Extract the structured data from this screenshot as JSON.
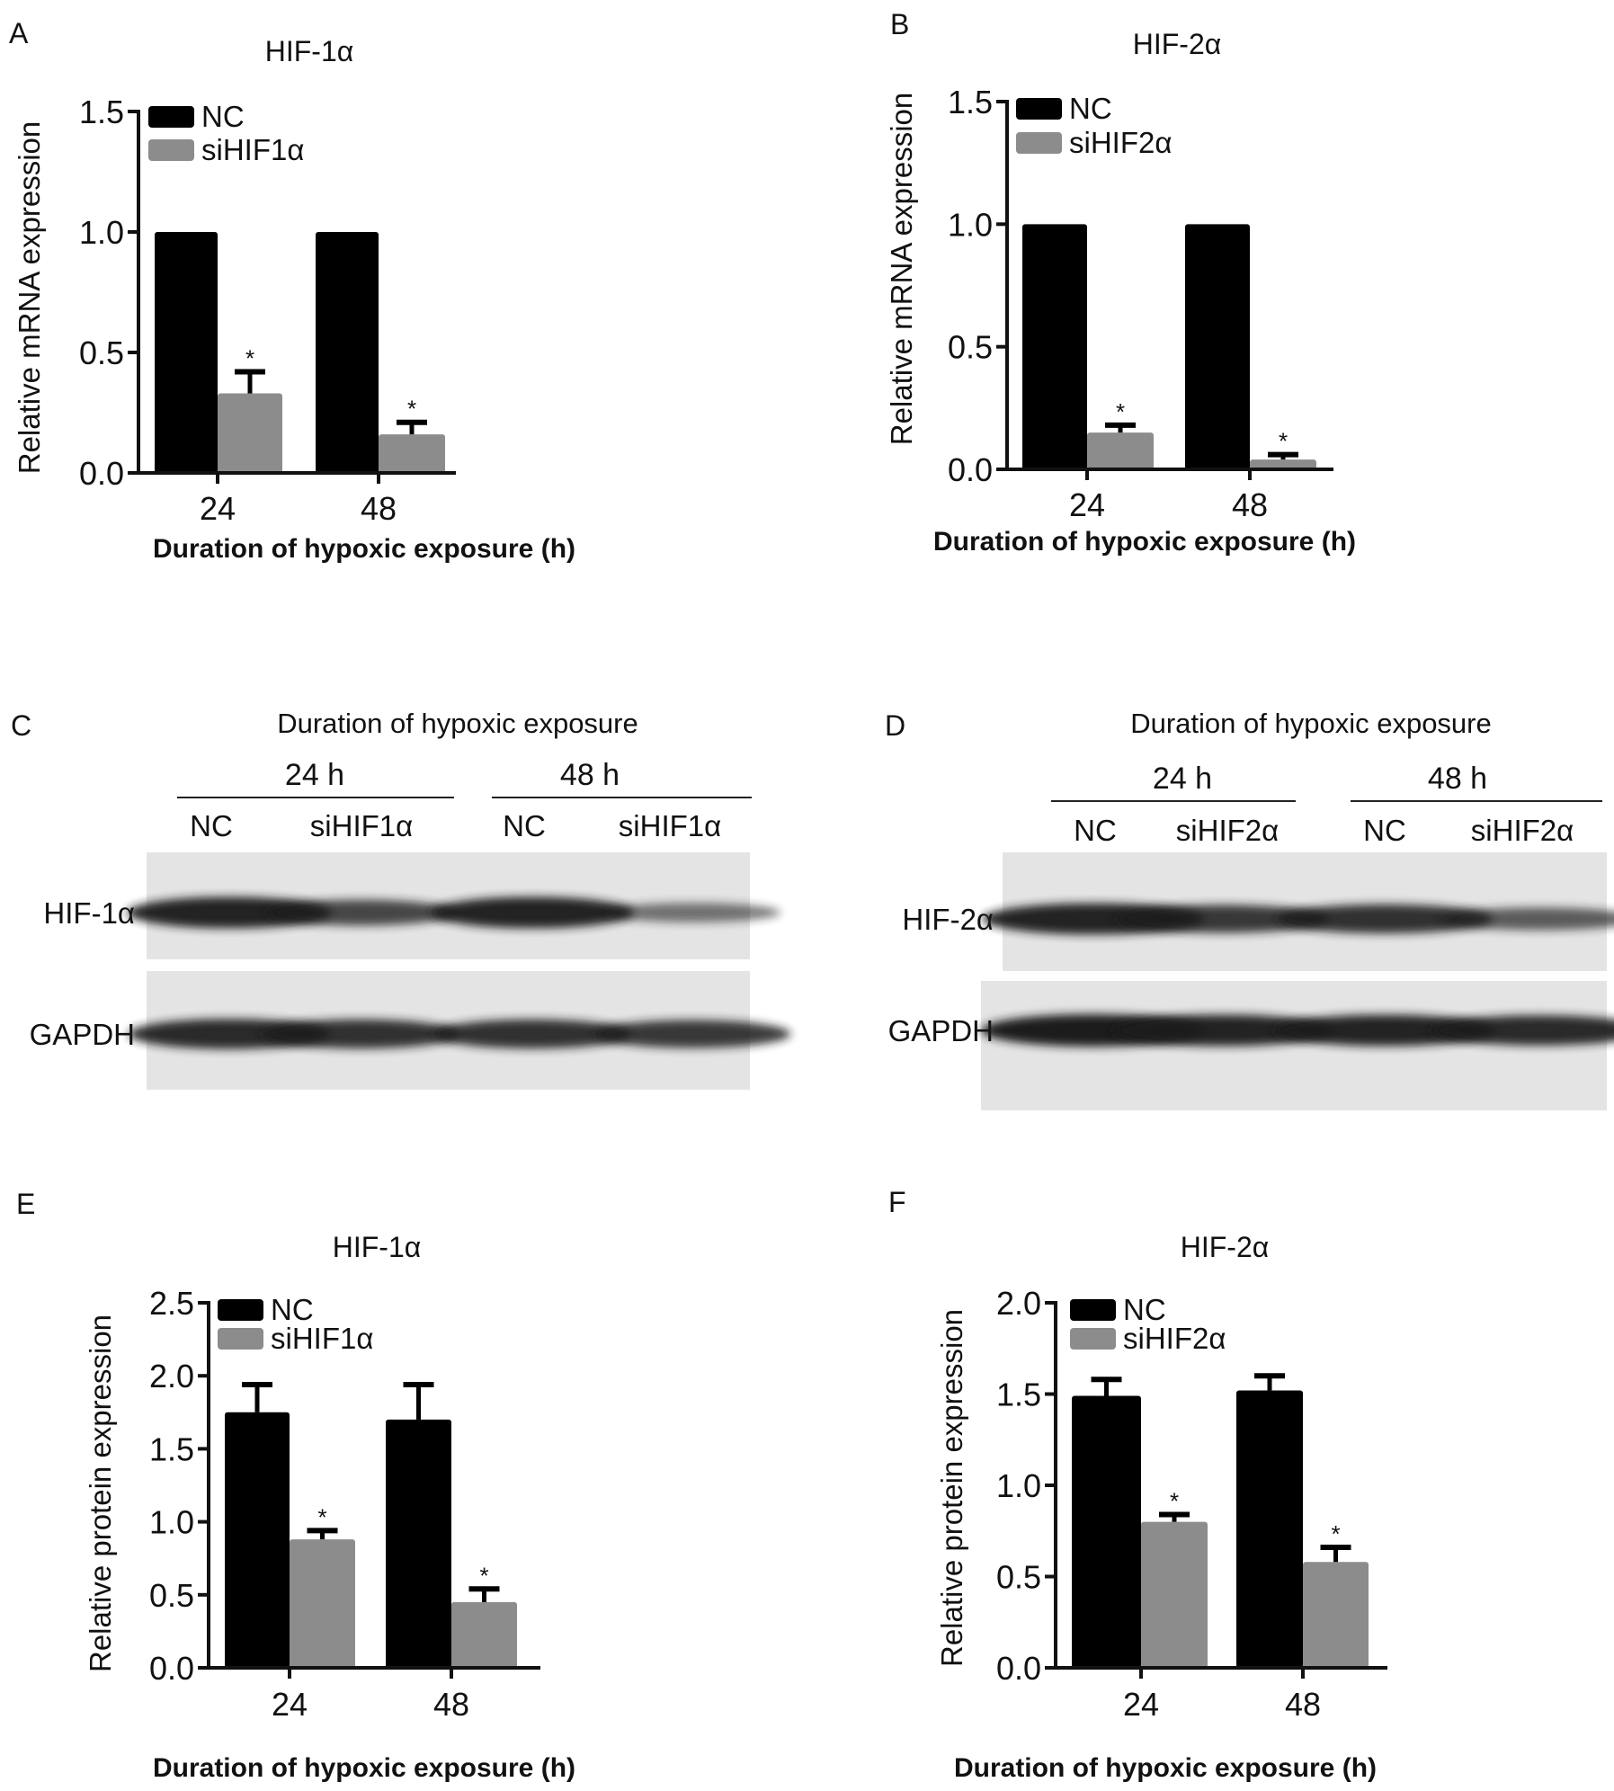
{
  "panel_letters": [
    "A",
    "B",
    "C",
    "D",
    "E",
    "F"
  ],
  "colors": {
    "nc": "#000000",
    "si": "#8c8c8c",
    "axis": "#111111",
    "blot_bg": "#e4e4e4",
    "band": "#1a1a1a"
  },
  "chart_data": [
    {
      "panel": "A",
      "type": "bar",
      "title": "HIF-1α",
      "xlabel": "Duration of hypoxic exposure (h)",
      "ylabel": "Relative mRNA expression",
      "categories": [
        "24",
        "48"
      ],
      "ylim": [
        0,
        1.5
      ],
      "yticks": [
        "0.0",
        "0.5",
        "1.0",
        "1.5"
      ],
      "legend_position": "top-left",
      "grid": false,
      "series": [
        {
          "name": "NC",
          "values": [
            1.0,
            1.0
          ],
          "errors": [
            0,
            0
          ],
          "significance": [
            "",
            ""
          ]
        },
        {
          "name": "siHIF1α",
          "values": [
            0.33,
            0.16
          ],
          "errors": [
            0.09,
            0.05
          ],
          "significance": [
            "*",
            "*"
          ]
        }
      ]
    },
    {
      "panel": "B",
      "type": "bar",
      "title": "HIF-2α",
      "xlabel": "Duration of hypoxic exposure (h)",
      "ylabel": "Relative mRNA expression",
      "categories": [
        "24",
        "48"
      ],
      "ylim": [
        0,
        1.5
      ],
      "yticks": [
        "0.0",
        "0.5",
        "1.0",
        "1.5"
      ],
      "legend_position": "top-left",
      "grid": false,
      "series": [
        {
          "name": "NC",
          "values": [
            1.0,
            1.0
          ],
          "errors": [
            0,
            0
          ],
          "significance": [
            "",
            ""
          ]
        },
        {
          "name": "siHIF2α",
          "values": [
            0.15,
            0.04
          ],
          "errors": [
            0.03,
            0.02
          ],
          "significance": [
            "*",
            "*"
          ]
        }
      ]
    },
    {
      "panel": "E",
      "type": "bar",
      "title": "HIF-1α",
      "xlabel": "Duration of hypoxic exposure (h)",
      "ylabel": "Relative protein expression",
      "categories": [
        "24",
        "48"
      ],
      "ylim": [
        0,
        2.5
      ],
      "yticks": [
        "0.0",
        "0.5",
        "1.0",
        "1.5",
        "2.0",
        "2.5"
      ],
      "legend_position": "top-left",
      "grid": false,
      "series": [
        {
          "name": "NC",
          "values": [
            1.75,
            1.7
          ],
          "errors": [
            0.19,
            0.24
          ],
          "significance": [
            "",
            ""
          ]
        },
        {
          "name": "siHIF1α",
          "values": [
            0.88,
            0.45
          ],
          "errors": [
            0.06,
            0.09
          ],
          "significance": [
            "*",
            "*"
          ]
        }
      ]
    },
    {
      "panel": "F",
      "type": "bar",
      "title": "HIF-2α",
      "xlabel": "Duration of hypoxic exposure (h)",
      "ylabel": "Relative protein expression",
      "categories": [
        "24",
        "48"
      ],
      "ylim": [
        0,
        2.0
      ],
      "yticks": [
        "0.0",
        "0.5",
        "1.0",
        "1.5",
        "2.0"
      ],
      "legend_position": "top-left",
      "grid": false,
      "series": [
        {
          "name": "NC",
          "values": [
            1.49,
            1.52
          ],
          "errors": [
            0.09,
            0.08
          ],
          "significance": [
            "",
            ""
          ]
        },
        {
          "name": "siHIF2α",
          "values": [
            0.8,
            0.58
          ],
          "errors": [
            0.04,
            0.08
          ],
          "significance": [
            "*",
            "*"
          ]
        }
      ]
    }
  ],
  "blots": [
    {
      "panel": "C",
      "header": "Duration of hypoxic exposure",
      "groups": [
        "24 h",
        "48 h"
      ],
      "lanes": [
        "NC",
        "siHIF1α",
        "NC",
        "siHIF1α"
      ],
      "rows": [
        {
          "label": "HIF-1α",
          "band_intensity": [
            0.95,
            0.7,
            0.95,
            0.4
          ]
        },
        {
          "label": "GAPDH",
          "band_intensity": [
            0.9,
            0.85,
            0.85,
            0.8
          ]
        }
      ]
    },
    {
      "panel": "D",
      "header": "Duration of hypoxic exposure",
      "groups": [
        "24 h",
        "48 h"
      ],
      "lanes": [
        "NC",
        "siHIF2α",
        "NC",
        "siHIF2α"
      ],
      "rows": [
        {
          "label": "HIF-2α",
          "band_intensity": [
            0.95,
            0.8,
            0.85,
            0.55
          ]
        },
        {
          "label": "GAPDH",
          "band_intensity": [
            1.0,
            0.95,
            0.95,
            0.9
          ]
        }
      ]
    }
  ]
}
